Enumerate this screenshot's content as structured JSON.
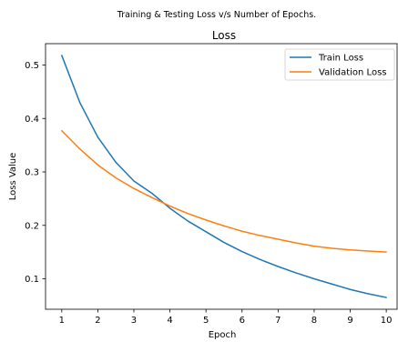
{
  "figure": {
    "suptitle": "Training & Testing Loss v/s Number of Epochs."
  },
  "chart_data": {
    "type": "line",
    "title": "Loss",
    "xlabel": "Epoch",
    "ylabel": "Loss Value",
    "xlim": [
      0.55,
      10.3
    ],
    "ylim": [
      0.043,
      0.54
    ],
    "xticks": [
      1,
      2,
      3,
      4,
      5,
      6,
      7,
      8,
      9,
      10
    ],
    "yticks": [
      0.1,
      0.2,
      0.3,
      0.4,
      0.5
    ],
    "ytick_labels": [
      "0.1",
      "0.2",
      "0.3",
      "0.4",
      "0.5"
    ],
    "grid": false,
    "legend": "top-right",
    "x": [
      1,
      1.5,
      2,
      2.5,
      3,
      3.5,
      4,
      4.5,
      5,
      5.5,
      6,
      6.5,
      7,
      7.5,
      8,
      8.5,
      9,
      9.5,
      10
    ],
    "series": [
      {
        "name": "Train Loss",
        "color": "#1f77b4",
        "values": [
          0.518,
          0.43,
          0.365,
          0.318,
          0.283,
          0.26,
          0.232,
          0.208,
          0.188,
          0.168,
          0.151,
          0.136,
          0.123,
          0.111,
          0.1,
          0.09,
          0.08,
          0.072,
          0.065
        ]
      },
      {
        "name": "Validation Loss",
        "color": "#ff7f0e",
        "values": [
          0.377,
          0.343,
          0.313,
          0.289,
          0.269,
          0.252,
          0.236,
          0.222,
          0.21,
          0.199,
          0.189,
          0.181,
          0.174,
          0.167,
          0.161,
          0.157,
          0.154,
          0.152,
          0.15
        ]
      }
    ]
  }
}
